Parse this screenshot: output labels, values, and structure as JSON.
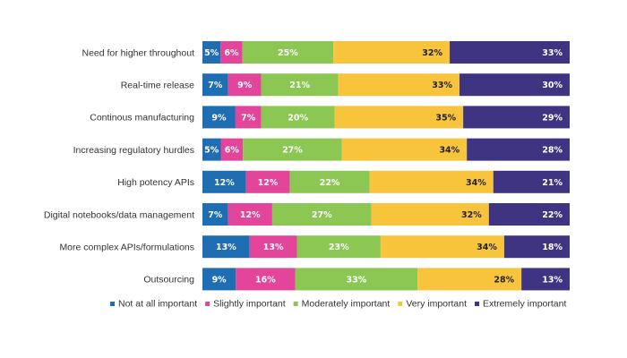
{
  "chart_data": {
    "type": "bar",
    "orientation": "horizontal",
    "stacked": true,
    "percent_stacked": true,
    "categories": [
      "Need for higher throughout",
      "Real-time release",
      "Continous manufacturing",
      "Increasing regulatory hurdles",
      "High potency APIs",
      "Digital notebooks/data management",
      "More complex APIs/formulations",
      "Outsourcing"
    ],
    "series": [
      {
        "name": "Not at all important",
        "color": "#1f6db3",
        "label_color": "#ffffff",
        "values": [
          5,
          7,
          9,
          5,
          12,
          7,
          13,
          9
        ]
      },
      {
        "name": "Slightly important",
        "color": "#e2459a",
        "label_color": "#ffffff",
        "values": [
          6,
          9,
          7,
          6,
          12,
          12,
          13,
          16
        ]
      },
      {
        "name": "Moderately important",
        "color": "#8dc753",
        "label_color": "#ffffff",
        "values": [
          25,
          21,
          20,
          27,
          22,
          27,
          23,
          33
        ]
      },
      {
        "name": "Very important",
        "color": "#f7c43b",
        "label_color": "#222222",
        "values": [
          32,
          33,
          35,
          34,
          34,
          32,
          34,
          28
        ]
      },
      {
        "name": "Extremely important",
        "color": "#3f3482",
        "label_color": "#ffffff",
        "values": [
          33,
          30,
          29,
          28,
          21,
          22,
          18,
          13
        ]
      }
    ],
    "value_suffix": "%",
    "grid": false,
    "legend_position": "bottom"
  }
}
